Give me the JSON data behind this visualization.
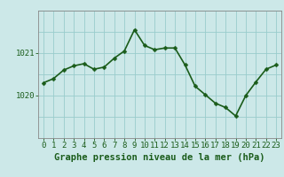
{
  "x": [
    0,
    1,
    2,
    3,
    4,
    5,
    6,
    7,
    8,
    9,
    10,
    11,
    12,
    13,
    14,
    15,
    16,
    17,
    18,
    19,
    20,
    21,
    22,
    23
  ],
  "y": [
    1020.3,
    1020.4,
    1020.6,
    1020.7,
    1020.75,
    1020.62,
    1020.67,
    1020.88,
    1021.05,
    1021.55,
    1021.18,
    1021.08,
    1021.12,
    1021.12,
    1020.72,
    1020.22,
    1020.02,
    1019.82,
    1019.72,
    1019.52,
    1020.0,
    1020.32,
    1020.62,
    1020.72
  ],
  "line_color": "#1a5c1a",
  "marker_color": "#1a5c1a",
  "bg_color": "#cce8e8",
  "plot_bg_color": "#cce8e8",
  "grid_color": "#99cccc",
  "bottom_bg": "#e8f8e8",
  "xlabel": "Graphe pression niveau de la mer (hPa)",
  "xlabel_color": "#1a5c1a",
  "tick_color": "#1a5c1a",
  "ytick_labels": [
    "1020",
    "1021"
  ],
  "ytick_values": [
    1020,
    1021
  ],
  "ylim": [
    1019.0,
    1022.0
  ],
  "xlim": [
    -0.5,
    23.5
  ],
  "xtick_values": [
    0,
    1,
    2,
    3,
    4,
    5,
    6,
    7,
    8,
    9,
    10,
    11,
    12,
    13,
    14,
    15,
    16,
    17,
    18,
    19,
    20,
    21,
    22,
    23
  ],
  "tick_fontsize": 6.5,
  "xlabel_fontsize": 7.5,
  "linewidth": 1.2,
  "markersize": 2.5
}
